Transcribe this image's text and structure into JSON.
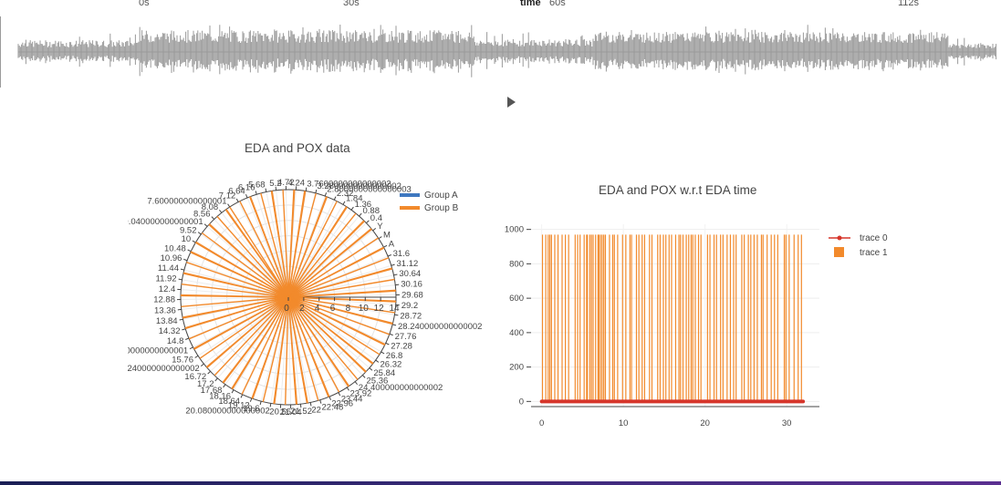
{
  "waveform": {
    "time_axis_name": "time",
    "time_labels": [
      "0s",
      "30s",
      "60s",
      "112s"
    ],
    "wave_color": "#9a9a9a"
  },
  "player": {
    "play_icon": "play-icon"
  },
  "chart_data": [
    {
      "type": "polar",
      "title": "EDA and POX data",
      "legend": {
        "entries": [
          "Group A",
          "Group B"
        ],
        "colors": [
          "#3f78c0",
          "#f28a2c"
        ],
        "placement": "top-right"
      },
      "radial_ticks": [
        "0",
        "2",
        "4",
        "6",
        "8",
        "10",
        "12",
        "14"
      ],
      "radial_range": [
        0,
        14
      ],
      "angular_labels": [
        "7.600000000000001",
        "7.12",
        "6.64",
        "6.16",
        "5.68",
        "5.2",
        "4.72",
        "4.24",
        "3.7600000000000002",
        "3.2800000000000002",
        "2.8000000000000003",
        "2.32",
        "1.84",
        "1.36",
        "0.88",
        "0.4",
        "Y",
        "M",
        "A",
        "31.6",
        "31.12",
        "30.64",
        "30.16",
        "29.68",
        "29.2",
        "28.72",
        "28.240000000000002",
        "27.76",
        "27.28",
        "26.8",
        "26.32",
        "25.84",
        "25.36",
        "24.400000000000002",
        "23.92",
        "23.44",
        "22.96",
        "22.48",
        "22",
        "21.52",
        "21.04",
        "20.56",
        "20.080000000000002",
        "19.6",
        "19.12",
        "18.64",
        "18.16",
        "17.68",
        "17.2",
        "16.72",
        "16.240000000000002",
        "15.76",
        "15.280000000000001",
        "14.8",
        "14.32",
        "13.84",
        "13.36",
        "12.88",
        "12.4",
        "11.92",
        "11.44",
        "10.96",
        "10.48",
        "10",
        "9.52",
        "9.040000000000001",
        "8.56",
        "8.08"
      ],
      "series": [
        {
          "name": "Group A",
          "r_values": []
        },
        {
          "name": "Group B",
          "r_value": 14,
          "spoke_count": 95
        }
      ],
      "grid": true
    },
    {
      "type": "line",
      "title": "EDA and POX w.r.t EDA time",
      "legend": {
        "entries": [
          "trace 0",
          "trace 1"
        ],
        "colors": [
          "#d6352a",
          "#f28a2c"
        ],
        "placement": "top-right"
      },
      "x_ticks": [
        "0",
        "10",
        "20",
        "30"
      ],
      "y_ticks": [
        "0",
        "200",
        "400",
        "600",
        "800",
        "1000"
      ],
      "xlim": [
        -1.3,
        34
      ],
      "ylim": [
        -30,
        1030
      ],
      "series": [
        {
          "name": "trace 0",
          "x_range": [
            0,
            32
          ],
          "y_value": 0
        },
        {
          "name": "trace 1",
          "y_value": 970,
          "x": [
            0.1,
            0.5,
            0.8,
            1.0,
            1.2,
            1.6,
            2.0,
            2.5,
            2.9,
            3.3,
            4.1,
            4.4,
            4.7,
            5.2,
            5.5,
            5.6,
            5.9,
            6.1,
            6.3,
            6.6,
            6.9,
            7.0,
            7.2,
            7.4,
            7.6,
            7.8,
            8.3,
            8.7,
            8.9,
            9.3,
            9.9,
            10.3,
            10.8,
            11.0,
            11.6,
            11.9,
            12.3,
            12.6,
            13.2,
            13.5,
            14.2,
            14.5,
            14.9,
            15.2,
            15.6,
            15.9,
            16.4,
            16.8,
            17.0,
            17.3,
            17.7,
            18.0,
            18.3,
            18.5,
            18.8,
            19.2,
            19.5,
            20.3,
            20.6,
            21.1,
            21.4,
            21.9,
            22.2,
            22.7,
            23.1,
            23.5,
            23.8,
            24.5,
            24.8,
            25.3,
            25.6,
            26.0,
            26.4,
            26.9,
            27.1,
            27.6,
            28.1,
            28.5,
            28.9,
            29.7,
            29.9,
            30.3,
            30.9,
            31.4,
            31.8
          ]
        }
      ],
      "grid": true
    }
  ]
}
